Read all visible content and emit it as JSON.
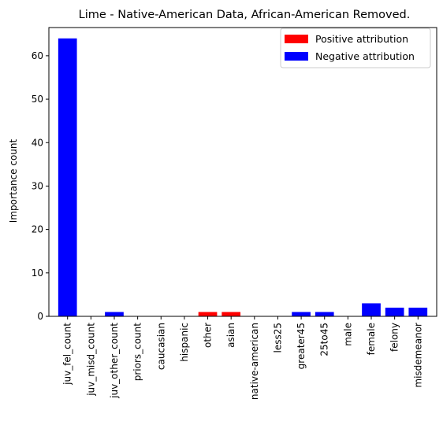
{
  "chart_data": {
    "type": "bar",
    "title": "Lime - Native-American Data, African-American Removed.",
    "xlabel": "",
    "ylabel": "Importance count",
    "ylim": [
      0,
      66.5
    ],
    "yticks": [
      0,
      10,
      20,
      30,
      40,
      50,
      60
    ],
    "grid": false,
    "legend_position": "top-right",
    "categories": [
      "juv_fel_count",
      "juv_misd_count",
      "juv_other_count",
      "priors_count",
      "caucasian",
      "hispanic",
      "other",
      "asian",
      "native-american",
      "less25",
      "greater45",
      "25to45",
      "male",
      "female",
      "felony",
      "misdemeanor"
    ],
    "values": [
      64,
      0,
      1,
      0,
      0,
      0,
      1,
      1,
      0,
      0,
      1,
      1,
      0,
      3,
      2,
      2
    ],
    "attribution": [
      "negative",
      "negative",
      "negative",
      "negative",
      "negative",
      "negative",
      "positive",
      "positive",
      "negative",
      "negative",
      "negative",
      "negative",
      "negative",
      "negative",
      "negative",
      "negative"
    ],
    "legend": [
      {
        "label": "Positive attribution",
        "color": "#ff0000"
      },
      {
        "label": "Negative attribution",
        "color": "#0000ff"
      }
    ],
    "colors": {
      "positive": "#ff0000",
      "negative": "#0000ff"
    }
  }
}
